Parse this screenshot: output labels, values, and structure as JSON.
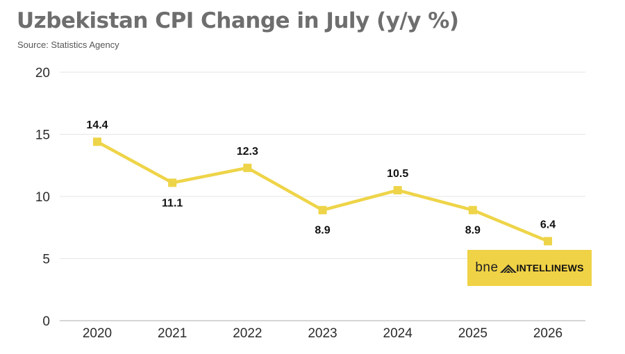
{
  "header": {
    "title": "Uzbekistan CPI Change in July (y/y %)",
    "subtitle": "Source: Statistics Agency"
  },
  "logo": {
    "brand_prefix": "bne",
    "brand_name": "INTELLINEWS",
    "background": "#f0d246"
  },
  "colors": {
    "line": "#eed448",
    "marker": "#eed448",
    "grid": "#e6e6e6",
    "axis": "#c8c8c8"
  },
  "chart_data": {
    "type": "line",
    "title": "Uzbekistan CPI Change in July (y/y %)",
    "subtitle": "Source: Statistics Agency",
    "xlabel": "",
    "ylabel": "",
    "categories": [
      "2020",
      "2021",
      "2022",
      "2023",
      "2024",
      "2025",
      "2026"
    ],
    "series": [
      {
        "values": [
          14.4,
          11.1,
          12.3,
          8.9,
          10.5,
          8.9,
          6.4
        ],
        "labels": [
          "14.4",
          "11.1",
          "12.3",
          "8.9",
          "10.5",
          "8.9",
          "6.4"
        ],
        "label_positions": [
          "above",
          "below",
          "above",
          "below",
          "above",
          "below",
          "above"
        ]
      }
    ],
    "ylim": [
      0,
      20
    ],
    "yticks": [
      0,
      5,
      10,
      15,
      20
    ],
    "ytick_labels": [
      "0",
      "5",
      "10",
      "15",
      "20"
    ],
    "grid": true,
    "legend": "none",
    "marker": "square"
  }
}
